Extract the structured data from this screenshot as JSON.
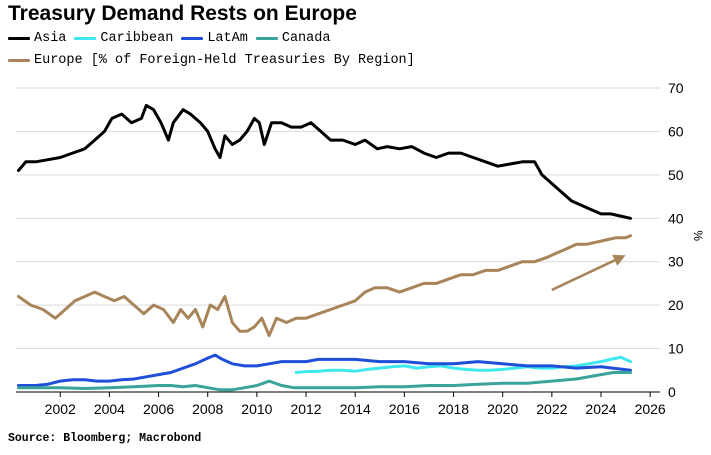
{
  "title": "Treasury Demand Rests on Europe",
  "legend": {
    "asia": "Asia",
    "caribbean": "Caribbean",
    "latam": "LatAm",
    "canada": "Canada",
    "europe": "Europe [% of Foreign-Held Treasuries By Region]"
  },
  "source": "Source: Bloomberg; Macrobond",
  "colors": {
    "asia": "#000000",
    "caribbean": "#3ee8ef",
    "latam": "#1f4fd8",
    "canada": "#3aa39a",
    "europe": "#a8845a",
    "grid": "#d9d9d9"
  },
  "chart_data": {
    "type": "line",
    "title": "Treasury Demand Rests on Europe",
    "ylabel": "%",
    "xlim": [
      2000.2,
      2026.4
    ],
    "ylim": [
      0,
      70
    ],
    "x_ticks": [
      2002,
      2004,
      2006,
      2008,
      2010,
      2012,
      2014,
      2016,
      2018,
      2020,
      2022,
      2024,
      2026
    ],
    "x_tick_labels": [
      "2002",
      "2004",
      "2006",
      "2008",
      "2010",
      "2012",
      "2014",
      "2016",
      "2018",
      "2020",
      "2022",
      "2024",
      "2026"
    ],
    "y_ticks": [
      0,
      10,
      20,
      30,
      40,
      50,
      60,
      70
    ],
    "y_tick_labels": [
      "0",
      "10",
      "20",
      "30",
      "40",
      "50",
      "60",
      "70"
    ],
    "grid": "horizontal",
    "legend_position": "top-left",
    "series": [
      {
        "name": "Asia",
        "key": "asia",
        "points": [
          [
            2000.3,
            51
          ],
          [
            2000.6,
            53
          ],
          [
            2001.0,
            53
          ],
          [
            2001.5,
            53.5
          ],
          [
            2002.0,
            54
          ],
          [
            2002.5,
            55
          ],
          [
            2003.0,
            56
          ],
          [
            2003.4,
            58
          ],
          [
            2003.8,
            60
          ],
          [
            2004.1,
            63
          ],
          [
            2004.5,
            64
          ],
          [
            2004.9,
            62
          ],
          [
            2005.3,
            63
          ],
          [
            2005.5,
            66
          ],
          [
            2005.8,
            65
          ],
          [
            2006.1,
            62
          ],
          [
            2006.4,
            58
          ],
          [
            2006.6,
            62
          ],
          [
            2007.0,
            65
          ],
          [
            2007.3,
            64
          ],
          [
            2007.7,
            62
          ],
          [
            2008.0,
            60
          ],
          [
            2008.3,
            56
          ],
          [
            2008.5,
            54
          ],
          [
            2008.7,
            59
          ],
          [
            2009.0,
            57
          ],
          [
            2009.3,
            58
          ],
          [
            2009.6,
            60
          ],
          [
            2009.9,
            63
          ],
          [
            2010.1,
            62
          ],
          [
            2010.3,
            57
          ],
          [
            2010.6,
            62
          ],
          [
            2011.0,
            62
          ],
          [
            2011.4,
            61
          ],
          [
            2011.8,
            61
          ],
          [
            2012.2,
            62
          ],
          [
            2012.6,
            60
          ],
          [
            2013.0,
            58
          ],
          [
            2013.5,
            58
          ],
          [
            2014.0,
            57
          ],
          [
            2014.4,
            58
          ],
          [
            2014.9,
            56
          ],
          [
            2015.3,
            56.5
          ],
          [
            2015.8,
            56
          ],
          [
            2016.3,
            56.5
          ],
          [
            2016.8,
            55
          ],
          [
            2017.3,
            54
          ],
          [
            2017.8,
            55
          ],
          [
            2018.3,
            55
          ],
          [
            2018.8,
            54
          ],
          [
            2019.3,
            53
          ],
          [
            2019.8,
            52
          ],
          [
            2020.3,
            52.5
          ],
          [
            2020.8,
            53
          ],
          [
            2021.3,
            53
          ],
          [
            2021.6,
            50
          ],
          [
            2022.0,
            48
          ],
          [
            2022.4,
            46
          ],
          [
            2022.8,
            44
          ],
          [
            2023.2,
            43
          ],
          [
            2023.6,
            42
          ],
          [
            2024.0,
            41
          ],
          [
            2024.4,
            41
          ],
          [
            2024.8,
            40.5
          ],
          [
            2025.2,
            40
          ]
        ]
      },
      {
        "name": "Caribbean",
        "key": "caribbean",
        "points": [
          [
            2011.6,
            4.5
          ],
          [
            2012.0,
            4.7
          ],
          [
            2012.5,
            4.8
          ],
          [
            2013.0,
            5
          ],
          [
            2013.5,
            5
          ],
          [
            2014.0,
            4.8
          ],
          [
            2014.5,
            5.2
          ],
          [
            2015.0,
            5.5
          ],
          [
            2015.5,
            5.8
          ],
          [
            2016.0,
            6
          ],
          [
            2016.5,
            5.5
          ],
          [
            2017.0,
            5.8
          ],
          [
            2017.5,
            6
          ],
          [
            2018.0,
            5.5
          ],
          [
            2018.5,
            5.2
          ],
          [
            2019.0,
            5
          ],
          [
            2019.5,
            5
          ],
          [
            2020.0,
            5.2
          ],
          [
            2020.5,
            5.5
          ],
          [
            2021.0,
            5.8
          ],
          [
            2021.5,
            5.5
          ],
          [
            2022.0,
            5.5
          ],
          [
            2022.5,
            5.8
          ],
          [
            2023.0,
            6
          ],
          [
            2023.5,
            6.5
          ],
          [
            2024.0,
            7
          ],
          [
            2024.4,
            7.5
          ],
          [
            2024.8,
            8
          ],
          [
            2025.2,
            7
          ]
        ]
      },
      {
        "name": "LatAm",
        "key": "latam",
        "points": [
          [
            2000.3,
            1.5
          ],
          [
            2001.0,
            1.5
          ],
          [
            2001.5,
            1.8
          ],
          [
            2002.0,
            2.5
          ],
          [
            2002.5,
            2.8
          ],
          [
            2003.0,
            2.8
          ],
          [
            2003.5,
            2.5
          ],
          [
            2004.0,
            2.5
          ],
          [
            2004.5,
            2.8
          ],
          [
            2005.0,
            3
          ],
          [
            2005.5,
            3.5
          ],
          [
            2006.0,
            4
          ],
          [
            2006.5,
            4.5
          ],
          [
            2007.0,
            5.5
          ],
          [
            2007.5,
            6.5
          ],
          [
            2008.0,
            7.8
          ],
          [
            2008.3,
            8.5
          ],
          [
            2008.6,
            7.5
          ],
          [
            2009.0,
            6.5
          ],
          [
            2009.5,
            6
          ],
          [
            2010.0,
            6
          ],
          [
            2010.5,
            6.5
          ],
          [
            2011.0,
            7
          ],
          [
            2011.5,
            7
          ],
          [
            2012.0,
            7
          ],
          [
            2012.5,
            7.5
          ],
          [
            2013.0,
            7.5
          ],
          [
            2014.0,
            7.5
          ],
          [
            2015.0,
            7
          ],
          [
            2016.0,
            7
          ],
          [
            2017.0,
            6.5
          ],
          [
            2018.0,
            6.5
          ],
          [
            2019.0,
            7
          ],
          [
            2020.0,
            6.5
          ],
          [
            2021.0,
            6
          ],
          [
            2022.0,
            6
          ],
          [
            2023.0,
            5.5
          ],
          [
            2024.0,
            5.8
          ],
          [
            2025.2,
            5
          ]
        ]
      },
      {
        "name": "Canada",
        "key": "canada",
        "points": [
          [
            2000.3,
            1
          ],
          [
            2001.0,
            1
          ],
          [
            2002.0,
            1
          ],
          [
            2003.0,
            0.8
          ],
          [
            2004.0,
            1
          ],
          [
            2005.0,
            1.2
          ],
          [
            2006.0,
            1.5
          ],
          [
            2006.5,
            1.5
          ],
          [
            2007.0,
            1.2
          ],
          [
            2007.5,
            1.5
          ],
          [
            2008.0,
            1
          ],
          [
            2008.5,
            0.5
          ],
          [
            2009.0,
            0.5
          ],
          [
            2009.5,
            1
          ],
          [
            2010.0,
            1.5
          ],
          [
            2010.5,
            2.5
          ],
          [
            2011.0,
            1.5
          ],
          [
            2011.5,
            1
          ],
          [
            2012.0,
            1
          ],
          [
            2013.0,
            1
          ],
          [
            2014.0,
            1
          ],
          [
            2015.0,
            1.2
          ],
          [
            2016.0,
            1.2
          ],
          [
            2017.0,
            1.5
          ],
          [
            2018.0,
            1.5
          ],
          [
            2019.0,
            1.8
          ],
          [
            2020.0,
            2
          ],
          [
            2021.0,
            2
          ],
          [
            2022.0,
            2.5
          ],
          [
            2023.0,
            3
          ],
          [
            2024.0,
            4
          ],
          [
            2024.5,
            4.5
          ],
          [
            2025.2,
            4.5
          ]
        ]
      },
      {
        "name": "Europe [% of Foreign-Held Treasuries By Region]",
        "key": "europe",
        "points": [
          [
            2000.3,
            22
          ],
          [
            2000.8,
            20
          ],
          [
            2001.3,
            19
          ],
          [
            2001.8,
            17
          ],
          [
            2002.2,
            19
          ],
          [
            2002.6,
            21
          ],
          [
            2003.0,
            22
          ],
          [
            2003.4,
            23
          ],
          [
            2003.8,
            22
          ],
          [
            2004.2,
            21
          ],
          [
            2004.6,
            22
          ],
          [
            2005.0,
            20
          ],
          [
            2005.4,
            18
          ],
          [
            2005.8,
            20
          ],
          [
            2006.2,
            19
          ],
          [
            2006.6,
            16
          ],
          [
            2006.9,
            19
          ],
          [
            2007.2,
            17
          ],
          [
            2007.5,
            19
          ],
          [
            2007.8,
            15
          ],
          [
            2008.1,
            20
          ],
          [
            2008.4,
            19
          ],
          [
            2008.7,
            22
          ],
          [
            2009.0,
            16
          ],
          [
            2009.3,
            14
          ],
          [
            2009.6,
            14
          ],
          [
            2009.9,
            15
          ],
          [
            2010.2,
            17
          ],
          [
            2010.5,
            13
          ],
          [
            2010.8,
            17
          ],
          [
            2011.2,
            16
          ],
          [
            2011.6,
            17
          ],
          [
            2012.0,
            17
          ],
          [
            2012.5,
            18
          ],
          [
            2013.0,
            19
          ],
          [
            2013.5,
            20
          ],
          [
            2014.0,
            21
          ],
          [
            2014.4,
            23
          ],
          [
            2014.8,
            24
          ],
          [
            2015.3,
            24
          ],
          [
            2015.8,
            23
          ],
          [
            2016.3,
            24
          ],
          [
            2016.8,
            25
          ],
          [
            2017.3,
            25
          ],
          [
            2017.8,
            26
          ],
          [
            2018.3,
            27
          ],
          [
            2018.8,
            27
          ],
          [
            2019.3,
            28
          ],
          [
            2019.8,
            28
          ],
          [
            2020.3,
            29
          ],
          [
            2020.8,
            30
          ],
          [
            2021.3,
            30
          ],
          [
            2021.8,
            31
          ],
          [
            2022.2,
            32
          ],
          [
            2022.6,
            33
          ],
          [
            2023.0,
            34
          ],
          [
            2023.4,
            34
          ],
          [
            2023.8,
            34.5
          ],
          [
            2024.2,
            35
          ],
          [
            2024.6,
            35.5
          ],
          [
            2025.0,
            35.5
          ],
          [
            2025.2,
            36
          ]
        ]
      }
    ],
    "annotations": [
      {
        "type": "arrow",
        "color": "#a8845a",
        "from": [
          2022.0,
          23.5
        ],
        "to": [
          2025.0,
          31.5
        ]
      }
    ]
  }
}
